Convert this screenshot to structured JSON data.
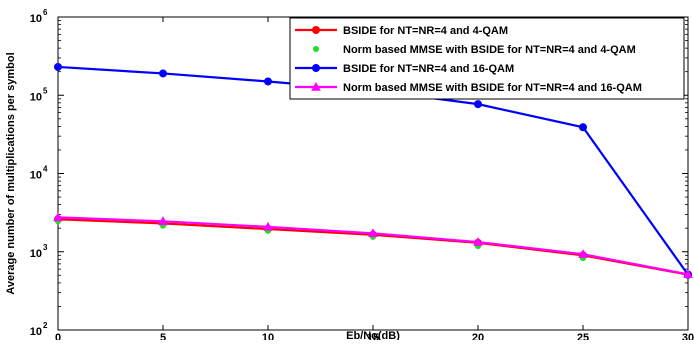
{
  "chart_data": {
    "type": "line",
    "title": "",
    "xlabel": "Eb/No(dB)",
    "ylabel": "Average number of multiplications per symbol",
    "x": [
      0,
      5,
      10,
      15,
      20,
      25,
      30
    ],
    "xlim": [
      0,
      30
    ],
    "ylim": [
      100,
      1000000
    ],
    "yscale": "log",
    "xticks": [
      "0",
      "5",
      "10",
      "15",
      "20",
      "25",
      "30"
    ],
    "yticks": [
      {
        "base": "10",
        "exp": "2",
        "value": 100
      },
      {
        "base": "10",
        "exp": "3",
        "value": 1000
      },
      {
        "base": "10",
        "exp": "4",
        "value": 10000
      },
      {
        "base": "10",
        "exp": "5",
        "value": 100000
      },
      {
        "base": "10",
        "exp": "6",
        "value": 1000000
      }
    ],
    "grid": false,
    "legend_position": "top-right",
    "series": [
      {
        "name": "BSIDE  for NT=NR=4 and 4-QAM",
        "color": "#ff0000",
        "marker": "circle",
        "line": true,
        "values": [
          2600,
          2300,
          1950,
          1650,
          1300,
          900,
          510
        ]
      },
      {
        "name": "Norm based MMSE with BSIDE for NT=NR=4 and 4-QAM",
        "color": "#22dd22",
        "marker": "dot",
        "line": false,
        "values": [
          2450,
          2150,
          1850,
          1550,
          1180,
          830,
          490
        ]
      },
      {
        "name": "BSIDE  for NT=NR=4 and 16-QAM",
        "color": "#0000ff",
        "marker": "circle",
        "line": true,
        "values": [
          230000,
          190000,
          150000,
          115000,
          77000,
          39000,
          510
        ]
      },
      {
        "name": "Norm based MMSE with BSIDE for NT=NR=4 and 16-QAM",
        "color": "#ff00ff",
        "marker": "triangle",
        "line": true,
        "values": [
          2750,
          2450,
          2080,
          1720,
          1330,
          930,
          515
        ]
      }
    ]
  }
}
